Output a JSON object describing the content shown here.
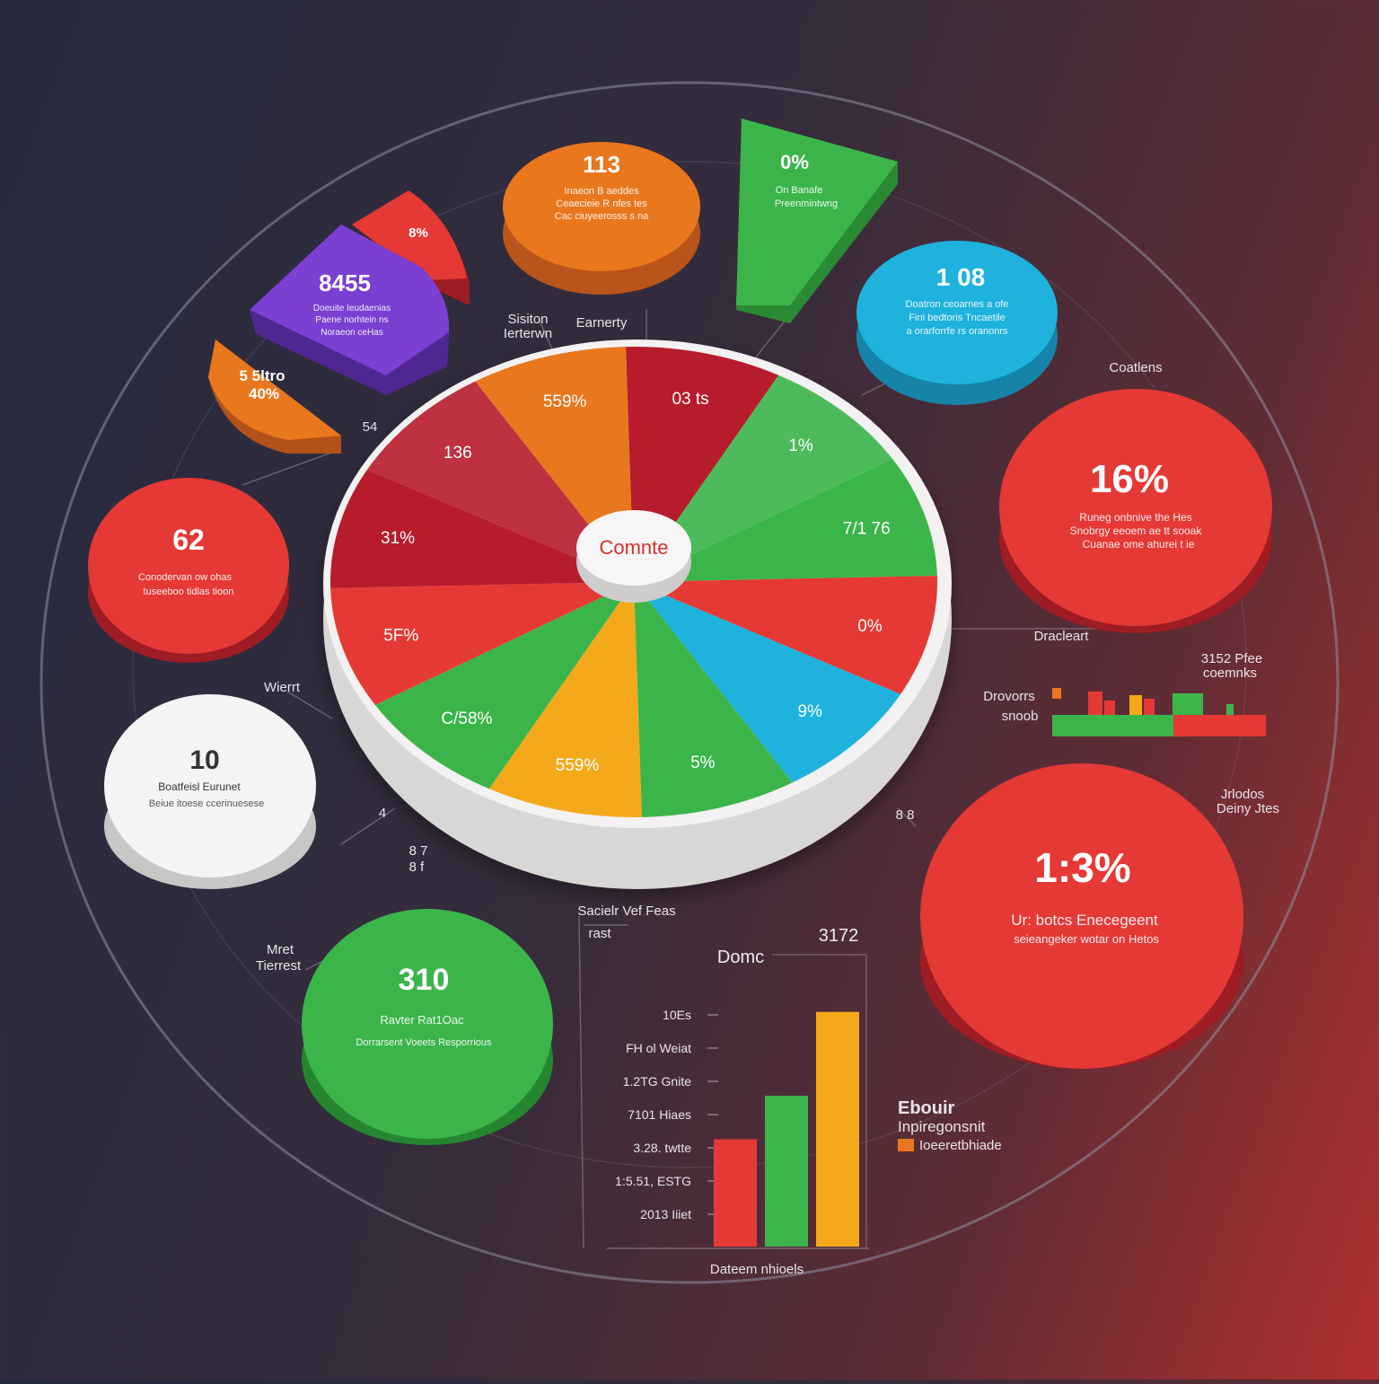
{
  "center_label": "Comnte",
  "ring_labels": {
    "slices": [
      "559%",
      "03 ts",
      "1%",
      "7/1 76",
      "0%",
      "9%",
      "5%",
      "559%",
      "C/58%",
      "5F%",
      "31%",
      "136"
    ]
  },
  "cards": {
    "orange_top": {
      "value": "113",
      "lines": [
        "Inaeon B aeddes",
        "Ceaecieie R nfes tes",
        "Cac ciuyeerosss s na"
      ]
    },
    "green_wedge": {
      "value": "0%",
      "lines": [
        "On Banafe",
        "Preenmintwng"
      ]
    },
    "blue": {
      "value": "1 08",
      "lines": [
        "Doatron ceoarnes a ofe",
        "Fini bedtoris Tncaetile",
        "a orarforrfe rs oranonrs"
      ]
    },
    "red_small_wedge": {
      "value": "8%"
    },
    "purple": {
      "value": "8455",
      "lines": [
        "Doeuite Ieudaenias",
        "Paene norhtein ns",
        "Noraeon ceHas"
      ]
    },
    "orange_wedge": {
      "value": "5 5ltro\n40%"
    },
    "red_left": {
      "value": "62",
      "lines": [
        "Conodervan ow ohas",
        "tuseeboo tidlas tioon"
      ]
    },
    "red_right_top": {
      "value": "16%",
      "lines": [
        "Runeg onbnive the Hes",
        "Snobrgy eeoem ae tt sooak",
        "Cuanae ome ahurei t ie"
      ]
    },
    "white": {
      "value": "10",
      "lines": [
        "Boatfeisl Eurunet",
        "Beiue itoese ccerinuesese"
      ]
    },
    "green_bottom": {
      "value": "310",
      "lines": [
        "Ravter Rat1Oac",
        "Dorrarsent Voeets Resporrious"
      ]
    },
    "red_right_bottom": {
      "value": "1:3%",
      "lines": [
        "Ur: botcs Enecegeent",
        "seieangeker wotar on Hetos"
      ]
    }
  },
  "annotations": {
    "sitton": "Sisiton\nIerterwn",
    "earnerty": "Earnerty",
    "coatlens": "Coatlens",
    "dracleart": "Dracleart",
    "wierrt": "Wierrt",
    "mret": "Mret\nTierrest",
    "sacielr": "Sacielr Vef Feas",
    "jrlodos": "Jrlodos\nDeiny Jtes",
    "small1": "54",
    "small2": "8 7\n8 f",
    "small3": "8 8",
    "small4": "4"
  },
  "mini_bar": {
    "label": "Drovorrs\nsnoob",
    "title": "3152 Pfee\ncoemnks"
  },
  "legend": {
    "title": "Ebouir\nInpiregonsnit",
    "item": "Ioeeretbhiade",
    "item_color": "#e8771e"
  },
  "chart_data": {
    "type": "bar",
    "title": "Domc",
    "value_label": "3172",
    "top_label": "rast",
    "xlabel": "Dateem nhioels",
    "y_tick_labels": [
      "10Es",
      "FH ol Weiat",
      "1.2TG Gnite",
      "7101 Hiaes",
      "3.28. twtte",
      "1:5.51, ESTG",
      "2013 Iiiet"
    ],
    "categories": [
      "red",
      "green",
      "yellow"
    ],
    "values": [
      32,
      45,
      70
    ],
    "colors": [
      "#e53935",
      "#3bb54a",
      "#f4a91b"
    ],
    "ylim": [
      0,
      75
    ]
  },
  "colors": {
    "red": "#e53935",
    "dark_red": "#b71c2c",
    "orange": "#e8771e",
    "green": "#3bb54a",
    "blue": "#1eb2dc",
    "purple": "#7b3fd1",
    "yellow": "#f4a91b"
  }
}
